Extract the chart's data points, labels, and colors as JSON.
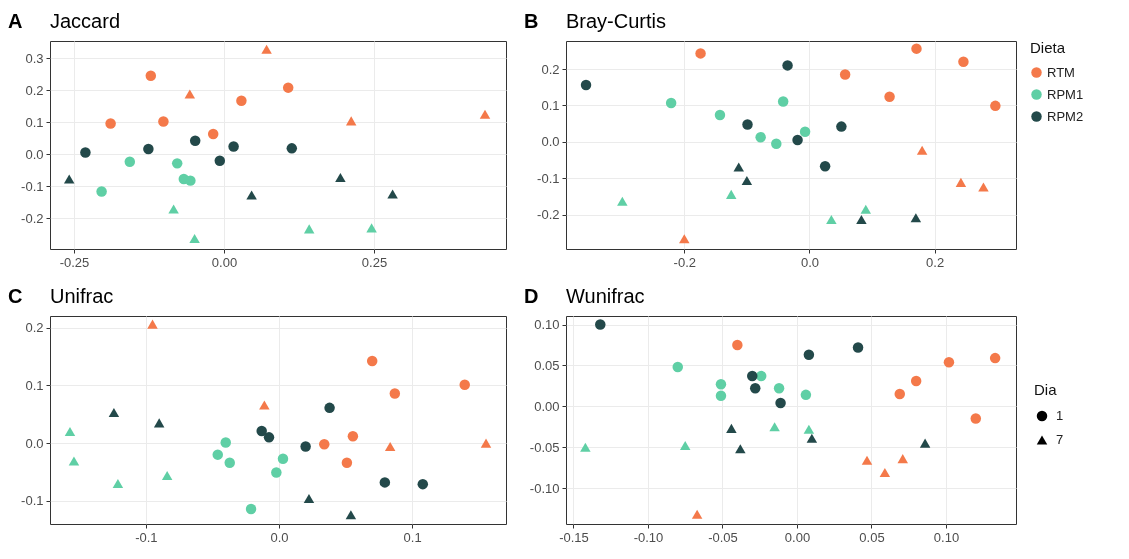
{
  "chart_data": [
    {
      "type": "scatter",
      "title": "Jaccard",
      "annotations": [
        "A"
      ],
      "grid": true,
      "xlim": [
        -0.29,
        0.47
      ],
      "ylim": [
        -0.297,
        0.354
      ],
      "xticks": [
        -0.25,
        {
          "value": 0,
          "label": "0.00"
        },
        0.25
      ],
      "yticks": [
        -0.2,
        -0.1,
        {
          "value": 0,
          "label": "0.0"
        },
        0.1,
        0.2,
        0.3
      ],
      "series": [
        {
          "color": "#f4794a",
          "marker": "circle",
          "x": [
            -0.122,
            -0.189,
            -0.101,
            -0.018,
            0.029,
            0.107
          ],
          "values": [
            0.245,
            0.096,
            0.102,
            0.063,
            0.167,
            0.208
          ]
        },
        {
          "color": "#f4794a",
          "marker": "triangle",
          "x": [
            0.071,
            -0.057,
            0.212,
            0.435
          ],
          "values": [
            0.328,
            0.188,
            0.104,
            0.125
          ]
        },
        {
          "color": "#5fcfa5",
          "marker": "circle",
          "x": [
            -0.157,
            -0.078,
            -0.067,
            -0.056,
            -0.204
          ],
          "values": [
            -0.024,
            -0.029,
            -0.078,
            -0.083,
            -0.117
          ]
        },
        {
          "color": "#5fcfa5",
          "marker": "triangle",
          "x": [
            -0.084,
            -0.049,
            0.142,
            0.246
          ],
          "values": [
            -0.172,
            -0.264,
            -0.234,
            -0.231
          ]
        },
        {
          "color": "#23494a",
          "marker": "circle",
          "x": [
            -0.231,
            -0.126,
            -0.048,
            -0.007,
            0.016,
            0.113
          ],
          "values": [
            0.005,
            0.016,
            0.042,
            -0.021,
            0.024,
            0.018
          ]
        },
        {
          "color": "#23494a",
          "marker": "triangle",
          "x": [
            -0.258,
            0.046,
            0.194,
            0.281
          ],
          "values": [
            -0.078,
            -0.128,
            -0.073,
            -0.125
          ]
        }
      ]
    },
    {
      "type": "scatter",
      "title": "Bray-Curtis",
      "annotations": [
        "B"
      ],
      "grid": true,
      "legend": "right",
      "legend_title": "Dieta",
      "xlim": [
        -0.389,
        0.33
      ],
      "ylim": [
        -0.294,
        0.277
      ],
      "xticks": [
        -0.2,
        {
          "value": 0,
          "label": "0.0"
        },
        0.2
      ],
      "yticks": [
        -0.2,
        -0.1,
        {
          "value": 0,
          "label": "0.0"
        },
        0.1,
        0.2
      ],
      "series": [
        {
          "name": "RTM",
          "color": "#f4794a",
          "marker": "circle",
          "x": [
            -0.174,
            0.057,
            0.128,
            0.171,
            0.246,
            0.297
          ],
          "values": [
            0.243,
            0.185,
            0.124,
            0.256,
            0.22,
            0.099
          ]
        },
        {
          "color": "#f4794a",
          "marker": "triangle",
          "x": [
            -0.2,
            0.18,
            0.242,
            0.278
          ],
          "values": [
            -0.266,
            -0.023,
            -0.111,
            -0.124
          ]
        },
        {
          "name": "RPM1",
          "color": "#5fcfa5",
          "marker": "circle",
          "x": [
            -0.221,
            -0.143,
            -0.078,
            -0.053,
            -0.042,
            -0.007
          ],
          "values": [
            0.107,
            0.074,
            0.013,
            -0.005,
            0.111,
            0.028
          ]
        },
        {
          "color": "#5fcfa5",
          "marker": "triangle",
          "x": [
            -0.299,
            -0.125,
            0.035,
            0.09
          ],
          "values": [
            -0.163,
            -0.144,
            -0.213,
            -0.185
          ]
        },
        {
          "name": "RPM2",
          "color": "#23494a",
          "marker": "circle",
          "x": [
            -0.357,
            -0.099,
            -0.035,
            -0.019,
            0.025,
            0.051
          ],
          "values": [
            0.156,
            0.048,
            0.21,
            0.005,
            -0.067,
            0.042
          ]
        },
        {
          "color": "#23494a",
          "marker": "triangle",
          "x": [
            -0.113,
            -0.1,
            0.083,
            0.17
          ],
          "values": [
            -0.069,
            -0.106,
            -0.213,
            -0.208
          ]
        }
      ]
    },
    {
      "type": "scatter",
      "title": "Unifrac",
      "annotations": [
        "C"
      ],
      "grid": true,
      "xlim": [
        -0.172,
        0.1705
      ],
      "ylim": [
        -0.14,
        0.22
      ],
      "xticks": [
        -0.1,
        {
          "value": 0,
          "label": "0.0"
        },
        0.1
      ],
      "yticks": [
        -0.1,
        {
          "value": 0,
          "label": "0.0"
        },
        0.1,
        0.2
      ],
      "series": [
        {
          "color": "#f4794a",
          "marker": "circle",
          "x": [
            0.07,
            0.087,
            0.1395,
            0.034,
            0.0555,
            0.051
          ],
          "values": [
            0.142,
            0.086,
            0.101,
            -0.002,
            0.012,
            -0.034
          ]
        },
        {
          "color": "#f4794a",
          "marker": "triangle",
          "x": [
            -0.095,
            -0.011,
            0.0835,
            0.1555
          ],
          "values": [
            0.206,
            0.066,
            -0.006,
            0.0
          ]
        },
        {
          "color": "#5fcfa5",
          "marker": "circle",
          "x": [
            -0.04,
            -0.046,
            -0.037,
            0.003,
            -0.002,
            -0.021
          ],
          "values": [
            0.001,
            -0.02,
            -0.034,
            -0.027,
            -0.051,
            -0.114
          ]
        },
        {
          "color": "#5fcfa5",
          "marker": "triangle",
          "x": [
            -0.157,
            -0.154,
            -0.121,
            -0.084
          ],
          "values": [
            0.02,
            -0.031,
            -0.07,
            -0.056
          ]
        },
        {
          "color": "#23494a",
          "marker": "circle",
          "x": [
            -0.013,
            -0.0075,
            0.038,
            0.02,
            0.0795,
            0.108
          ],
          "values": [
            0.021,
            0.01,
            0.061,
            -0.006,
            -0.068,
            -0.071
          ]
        },
        {
          "color": "#23494a",
          "marker": "triangle",
          "x": [
            -0.124,
            -0.09,
            0.0225,
            0.054
          ],
          "values": [
            0.053,
            0.035,
            -0.096,
            -0.124
          ]
        }
      ]
    },
    {
      "type": "scatter",
      "title": "Wunifrac",
      "annotations": [
        "D"
      ],
      "grid": true,
      "legend": "right",
      "legend_title": "Dia",
      "xlim": [
        -0.155,
        0.147
      ],
      "ylim": [
        -0.144,
        0.1105
      ],
      "xticks": [
        -0.15,
        {
          "value": -0.1,
          "label": "-0.10"
        },
        -0.05,
        {
          "value": 0,
          "label": "0.00"
        },
        0.05,
        {
          "value": 0.1,
          "label": "0.10"
        }
      ],
      "yticks": [
        {
          "value": -0.1,
          "label": "-0.10"
        },
        -0.05,
        {
          "value": 0,
          "label": "0.00"
        },
        0.05,
        {
          "value": 0.1,
          "label": "0.10"
        }
      ],
      "series": [
        {
          "name": "1",
          "color": "#f4794a",
          "marker": "circle",
          "x": [
            -0.04,
            0.069,
            0.08,
            0.102,
            0.133,
            0.12
          ],
          "values": [
            0.075,
            0.015,
            0.031,
            0.054,
            0.059,
            -0.015
          ]
        },
        {
          "name": "7",
          "color": "#f4794a",
          "marker": "triangle",
          "x": [
            -0.067,
            0.047,
            0.059,
            0.071
          ],
          "values": [
            -0.132,
            -0.066,
            -0.081,
            -0.064
          ]
        },
        {
          "color": "#5fcfa5",
          "marker": "circle",
          "x": [
            -0.08,
            -0.051,
            -0.051,
            -0.024,
            -0.012,
            0.006
          ],
          "values": [
            0.048,
            0.027,
            0.013,
            0.037,
            0.022,
            0.014
          ]
        },
        {
          "color": "#5fcfa5",
          "marker": "triangle",
          "x": [
            -0.142,
            -0.075,
            -0.015,
            0.008
          ],
          "values": [
            -0.05,
            -0.048,
            -0.025,
            -0.028
          ]
        },
        {
          "color": "#23494a",
          "marker": "circle",
          "x": [
            -0.132,
            -0.03,
            -0.028,
            -0.011,
            0.008,
            0.041
          ],
          "values": [
            0.1,
            0.037,
            0.022,
            0.004,
            0.063,
            0.072
          ]
        },
        {
          "color": "#23494a",
          "marker": "triangle",
          "x": [
            -0.044,
            -0.038,
            0.01,
            0.086
          ],
          "values": [
            -0.027,
            -0.052,
            -0.039,
            -0.045
          ]
        }
      ]
    }
  ]
}
